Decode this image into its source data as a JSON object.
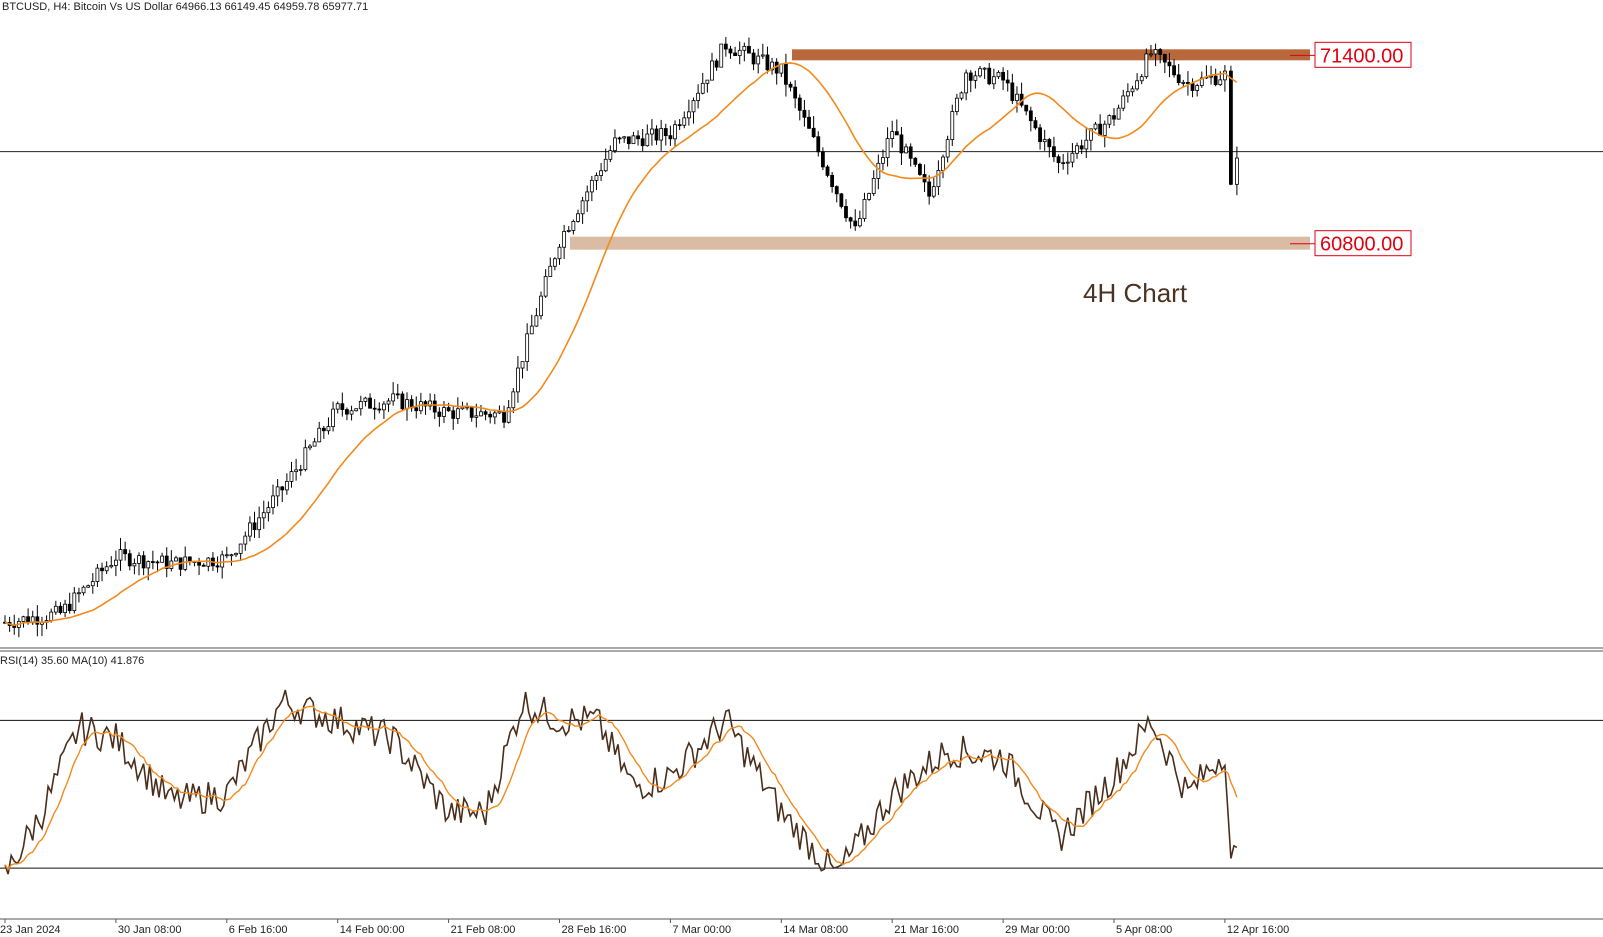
{
  "header": {
    "symbol_line": "BTCUSD, H4:  Bitcoin Vs US Dollar  64966.13 66149.45 64959.78 65977.71"
  },
  "rsi_header": "RSI(14) 35.60 MA(10) 41.876",
  "levels": {
    "resistance": "71400.00",
    "support": "60800.00"
  },
  "annotation": "4H Chart",
  "colors": {
    "resistance_zone": "#b8683a",
    "support_zone": "#d9bca3",
    "ma": "#f28a1c",
    "rsi": "#4a2e1c",
    "candle": "#000000",
    "label_red": "#e0000f"
  },
  "chart_data": [
    {
      "type": "candlestick",
      "symbol": "BTCUSD",
      "timeframe": "H4",
      "x_ticks": [
        "23 Jan 2024",
        "30 Jan 08:00",
        "6 Feb 16:00",
        "14 Feb 00:00",
        "21 Feb 08:00",
        "28 Feb 16:00",
        "7 Mar 00:00",
        "14 Mar 08:00",
        "21 Mar 16:00",
        "29 Mar 00:00",
        "5 Apr 08:00",
        "12 Apr 16:00"
      ],
      "current_price": 65977.71,
      "ohlc_last": {
        "open": 64966.13,
        "high": 66149.45,
        "low": 64959.78,
        "close": 65977.71
      },
      "price_path": [
        {
          "t": "23 Jan 2024",
          "price": 39500
        },
        {
          "t": "26 Jan",
          "price": 40000
        },
        {
          "t": "30 Jan 08:00",
          "price": 43200
        },
        {
          "t": "2 Feb",
          "price": 42800
        },
        {
          "t": "6 Feb 16:00",
          "price": 43100
        },
        {
          "t": "9 Feb",
          "price": 47000
        },
        {
          "t": "14 Feb 00:00",
          "price": 51500
        },
        {
          "t": "17 Feb",
          "price": 52000
        },
        {
          "t": "21 Feb 08:00",
          "price": 51300
        },
        {
          "t": "25 Feb",
          "price": 51200
        },
        {
          "t": "28 Feb 16:00",
          "price": 61000
        },
        {
          "t": "4 Mar",
          "price": 66500
        },
        {
          "t": "7 Mar 00:00",
          "price": 67000
        },
        {
          "t": "11 Mar",
          "price": 72000
        },
        {
          "t": "14 Mar 08:00",
          "price": 70500
        },
        {
          "t": "17 Mar",
          "price": 66000
        },
        {
          "t": "19 Mar",
          "price": 61500
        },
        {
          "t": "21 Mar 16:00",
          "price": 67200
        },
        {
          "t": "23 Mar",
          "price": 63500
        },
        {
          "t": "26 Mar",
          "price": 70500
        },
        {
          "t": "29 Mar 00:00",
          "price": 70000
        },
        {
          "t": "2 Apr",
          "price": 65300
        },
        {
          "t": "5 Apr 08:00",
          "price": 68000
        },
        {
          "t": "8 Apr",
          "price": 71500
        },
        {
          "t": "10 Apr",
          "price": 69800
        },
        {
          "t": "12 Apr 16:00",
          "price": 70300
        },
        {
          "t": "13 Apr",
          "price": 63800
        },
        {
          "t": "14 Apr",
          "price": 65977.71
        }
      ],
      "moving_average": "orange line following price",
      "levels": [
        71400.0,
        60800.0
      ],
      "ylim": [
        38500,
        73500
      ]
    },
    {
      "type": "line",
      "name": "RSI(14)",
      "value": 35.6,
      "ma_period": 10,
      "ma_value": 41.876,
      "guide_levels": [
        70,
        30
      ],
      "ylim": [
        20,
        85
      ],
      "path": [
        {
          "t": "23 Jan 2024",
          "rsi": 28
        },
        {
          "t": "26 Jan",
          "rsi": 45
        },
        {
          "t": "28 Jan",
          "rsi": 68
        },
        {
          "t": "30 Jan 08:00",
          "rsi": 65
        },
        {
          "t": "2 Feb",
          "rsi": 48
        },
        {
          "t": "6 Feb 16:00",
          "rsi": 50
        },
        {
          "t": "9 Feb",
          "rsi": 75
        },
        {
          "t": "14 Feb 00:00",
          "rsi": 70
        },
        {
          "t": "18 Feb",
          "rsi": 65
        },
        {
          "t": "21 Feb 08:00",
          "rsi": 45
        },
        {
          "t": "24 Feb",
          "rsi": 45
        },
        {
          "t": "26 Feb",
          "rsi": 75
        },
        {
          "t": "28 Feb 16:00",
          "rsi": 70
        },
        {
          "t": "3 Mar",
          "rsi": 70
        },
        {
          "t": "5 Mar",
          "rsi": 52
        },
        {
          "t": "7 Mar 00:00",
          "rsi": 55
        },
        {
          "t": "11 Mar",
          "rsi": 70
        },
        {
          "t": "14 Mar 08:00",
          "rsi": 45
        },
        {
          "t": "19 Mar",
          "rsi": 28
        },
        {
          "t": "21 Mar 16:00",
          "rsi": 50
        },
        {
          "t": "24 Mar",
          "rsi": 62
        },
        {
          "t": "29 Mar 00:00",
          "rsi": 60
        },
        {
          "t": "2 Apr",
          "rsi": 38
        },
        {
          "t": "5 Apr 08:00",
          "rsi": 55
        },
        {
          "t": "8 Apr",
          "rsi": 70
        },
        {
          "t": "10 Apr",
          "rsi": 50
        },
        {
          "t": "12 Apr 16:00",
          "rsi": 62
        },
        {
          "t": "13 Apr",
          "rsi": 30
        },
        {
          "t": "14 Apr",
          "rsi": 35.6
        }
      ]
    }
  ]
}
